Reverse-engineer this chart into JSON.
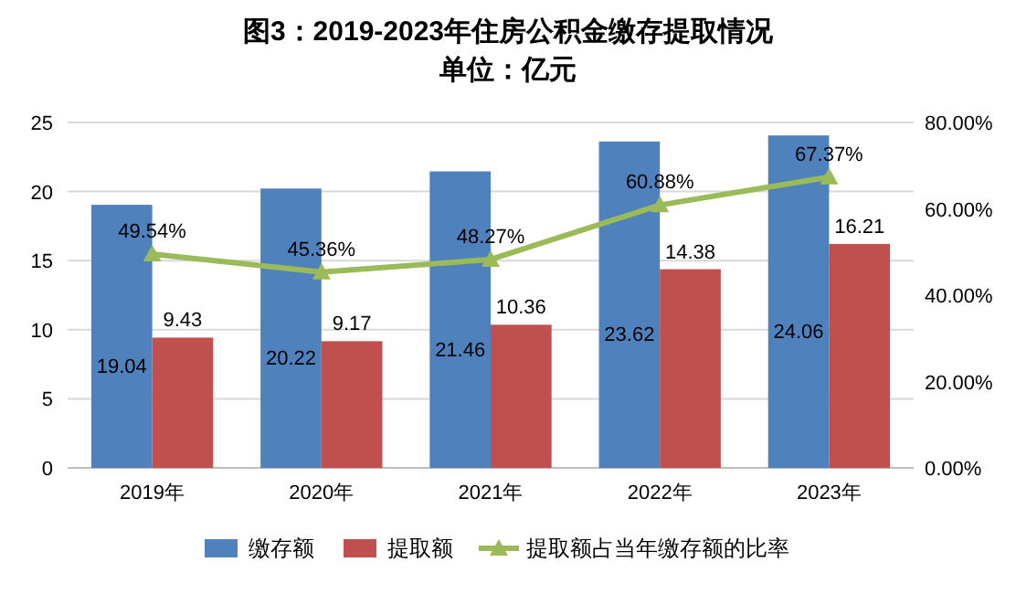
{
  "chart_data": {
    "type": "bar",
    "title": "图3：2019-2023年住房公积金缴存提取情况",
    "subtitle": "单位：亿元",
    "categories": [
      "2019年",
      "2020年",
      "2021年",
      "2022年",
      "2023年"
    ],
    "series": [
      {
        "name": "缴存额",
        "color": "#4f81bd",
        "values": [
          19.04,
          20.22,
          21.46,
          23.62,
          24.06
        ]
      },
      {
        "name": "提取额",
        "color": "#c0504d",
        "values": [
          9.43,
          9.17,
          10.36,
          14.38,
          16.21
        ]
      },
      {
        "name": "提取额占当年缴存额的比率",
        "type": "line",
        "axis": "y2",
        "color": "#9bbb59",
        "marker": "triangle",
        "values": [
          49.54,
          45.36,
          48.27,
          60.88,
          67.37
        ],
        "value_labels": [
          "49.54%",
          "45.36%",
          "48.27%",
          "60.88%",
          "67.37%"
        ]
      }
    ],
    "ylim": [
      0,
      25
    ],
    "yticks": [
      0,
      5,
      10,
      15,
      20,
      25
    ],
    "y2lim": [
      0,
      80
    ],
    "y2ticks": [
      {
        "value": 0,
        "label": "0.00%"
      },
      {
        "value": 20,
        "label": "20.00%"
      },
      {
        "value": 40,
        "label": "40.00%"
      },
      {
        "value": 60,
        "label": "60.00%"
      },
      {
        "value": 80,
        "label": "80.00%"
      }
    ],
    "data_labels": true,
    "grid": "y",
    "legend": "bottom"
  }
}
